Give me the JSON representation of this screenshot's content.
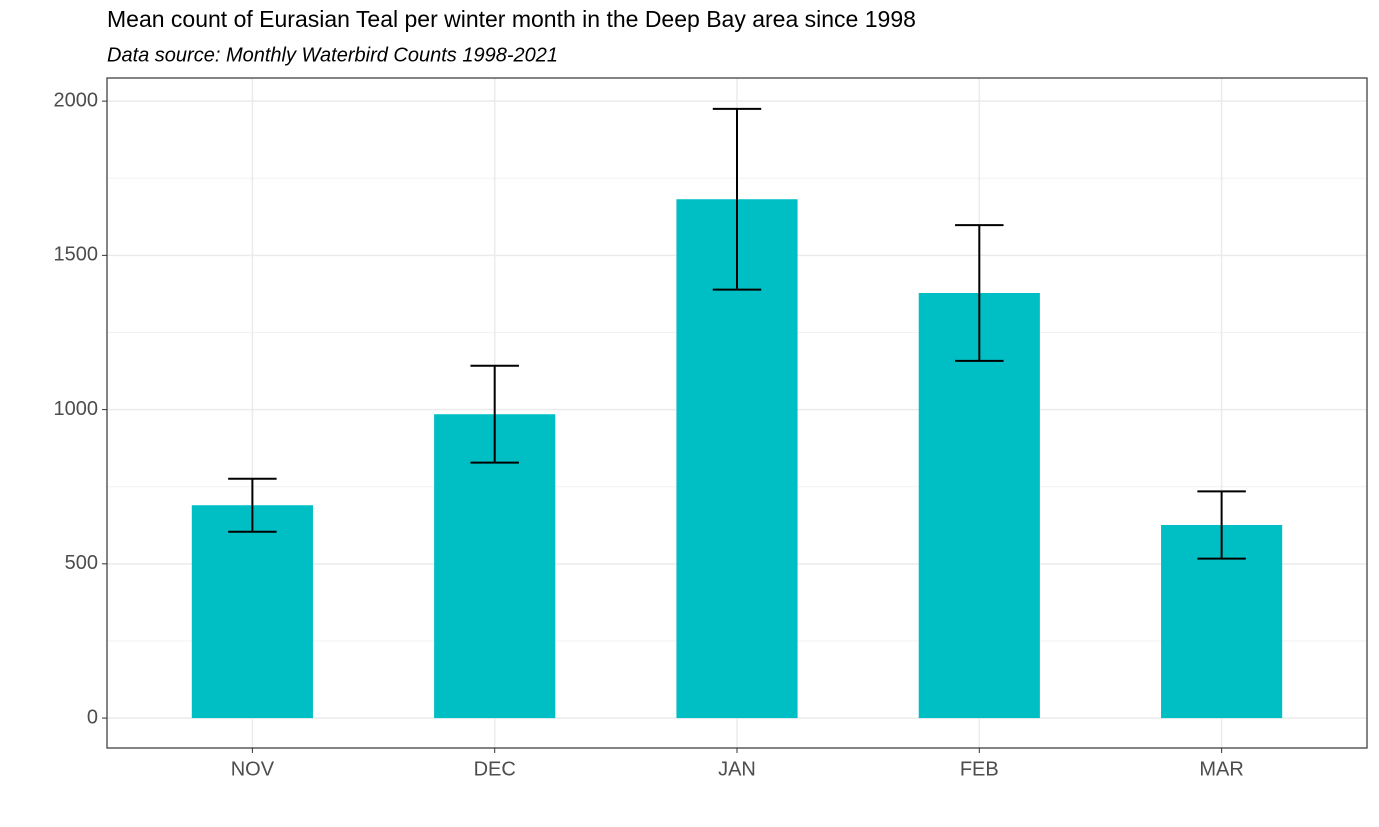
{
  "chart_data": {
    "type": "bar",
    "title": "Mean count of Eurasian Teal per winter month in the Deep Bay area since 1998",
    "subtitle": "Data source: Monthly Waterbird Counts 1998-2021",
    "categories": [
      "NOV",
      "DEC",
      "JAN",
      "FEB",
      "MAR"
    ],
    "values": [
      690,
      985,
      1682,
      1378,
      626
    ],
    "errors": [
      86,
      157,
      293,
      220,
      109
    ],
    "color": "#00bfc4",
    "ylim": [
      -97,
      2075
    ],
    "yticks": [
      0,
      500,
      1000,
      1500,
      2000
    ],
    "grid": true
  }
}
